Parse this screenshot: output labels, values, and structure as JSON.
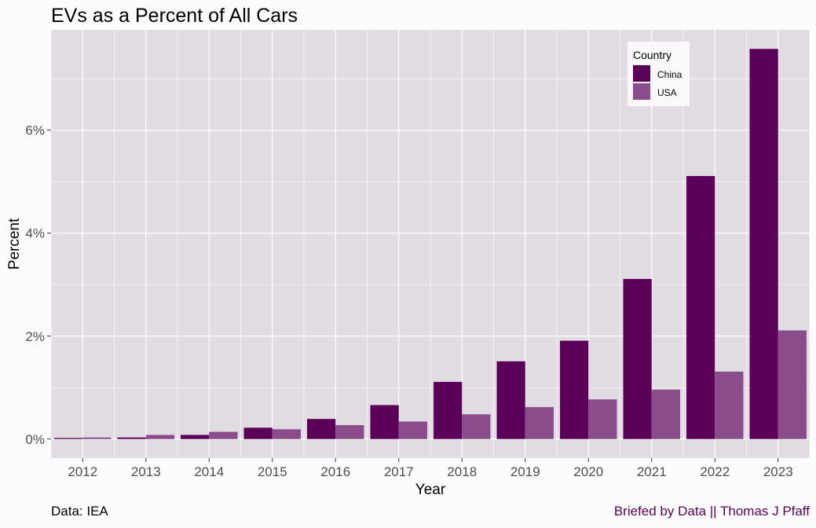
{
  "colors": {
    "china": "#5b0059",
    "usa": "#8b4c8c",
    "panel": "#e0dce1",
    "grid": "#ffffff",
    "caption_right": "#5b0059"
  },
  "caption": {
    "left": "Data: IEA",
    "right": "Briefed by Data || Thomas J Pfaff"
  },
  "chart_data": {
    "type": "bar",
    "title": "EVs as a Percent of All Cars",
    "xlabel": "Year",
    "ylabel": "Percent",
    "categories": [
      "2012",
      "2013",
      "2014",
      "2015",
      "2016",
      "2017",
      "2018",
      "2019",
      "2020",
      "2021",
      "2022",
      "2023"
    ],
    "series": [
      {
        "name": "China",
        "values": [
          0.02,
          0.03,
          0.08,
          0.22,
          0.39,
          0.66,
          1.11,
          1.51,
          1.91,
          3.11,
          5.11,
          7.58
        ]
      },
      {
        "name": "USA",
        "values": [
          0.03,
          0.08,
          0.14,
          0.19,
          0.27,
          0.34,
          0.48,
          0.62,
          0.77,
          0.96,
          1.31,
          2.11
        ]
      }
    ],
    "ylim": [
      -0.37,
      7.95
    ],
    "yticks": [
      0,
      2,
      4,
      6
    ],
    "ytick_labels": [
      "0%",
      "2%",
      "4%",
      "6%"
    ],
    "grid": true,
    "legend": {
      "title": "Country",
      "placement": "top-right"
    }
  }
}
